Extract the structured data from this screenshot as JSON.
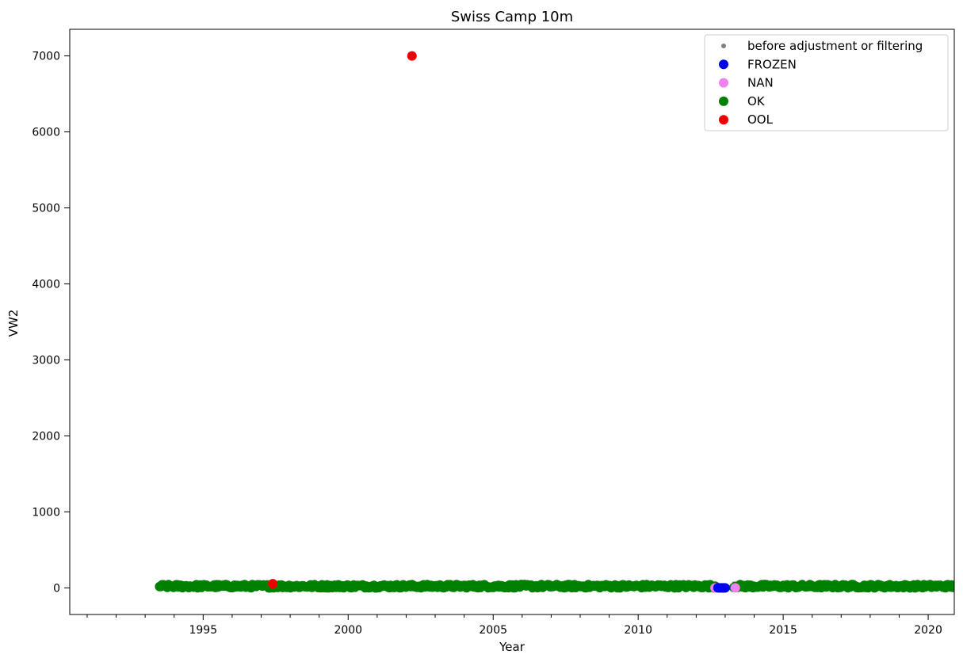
{
  "chart_data": {
    "type": "scatter",
    "title": "Swiss Camp 10m",
    "xlabel": "Year",
    "ylabel": "VW2",
    "xlim": [
      1990.4,
      2020.9
    ],
    "ylim": [
      -350,
      7350
    ],
    "x_ticks": [
      1995,
      2000,
      2005,
      2010,
      2015,
      2020
    ],
    "y_ticks": [
      0,
      1000,
      2000,
      3000,
      4000,
      5000,
      6000,
      7000
    ],
    "grid": false,
    "legend": {
      "position": "top-right",
      "entries": [
        "before adjustment or filtering",
        "FROZEN",
        "NAN",
        "OK",
        "OOL"
      ]
    },
    "series": [
      {
        "name": "before adjustment or filtering",
        "color": "#808080",
        "marker_size": "small",
        "segments": [
          {
            "x_start": 1993.5,
            "x_end": 2012.7,
            "y_min": 0,
            "y_max": 60
          },
          {
            "x_start": 2013.3,
            "x_end": 2020.9,
            "y_min": 0,
            "y_max": 60
          }
        ]
      },
      {
        "name": "FROZEN",
        "color": "#0000ee",
        "points": [
          [
            2012.75,
            0
          ],
          [
            2012.8,
            0
          ],
          [
            2012.85,
            0
          ],
          [
            2012.9,
            0
          ],
          [
            2012.95,
            0
          ],
          [
            2013.0,
            0
          ]
        ]
      },
      {
        "name": "NAN",
        "color": "#ee82ee",
        "points": [
          [
            2012.65,
            0
          ],
          [
            2013.35,
            0
          ]
        ]
      },
      {
        "name": "OK",
        "color": "#008000",
        "segments": [
          {
            "x_start": 1993.5,
            "x_end": 2012.7,
            "y_min": 0,
            "y_max": 45
          },
          {
            "x_start": 2013.3,
            "x_end": 2020.9,
            "y_min": 0,
            "y_max": 45
          }
        ]
      },
      {
        "name": "OOL",
        "color": "#ee0000",
        "points": [
          [
            2002.2,
            7000
          ],
          [
            1997.4,
            55
          ]
        ]
      }
    ]
  }
}
